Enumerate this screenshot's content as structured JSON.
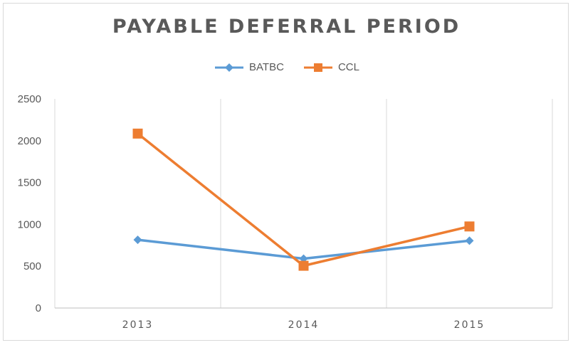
{
  "chart_data": {
    "type": "line",
    "title": "PAYABLE DEFERRAL PERIOD",
    "categories": [
      "2013",
      "2014",
      "2015"
    ],
    "series": [
      {
        "name": "BATBC",
        "values": [
          815,
          590,
          805
        ],
        "color": "#5b9bd5",
        "marker": "diamond"
      },
      {
        "name": "CCL",
        "values": [
          2085,
          505,
          975
        ],
        "color": "#ed7d31",
        "marker": "square"
      }
    ],
    "ylim": [
      0,
      2500
    ],
    "yticks": [
      0,
      500,
      1000,
      1500,
      2000,
      2500
    ],
    "grid": "vertical",
    "legend_position": "top"
  }
}
